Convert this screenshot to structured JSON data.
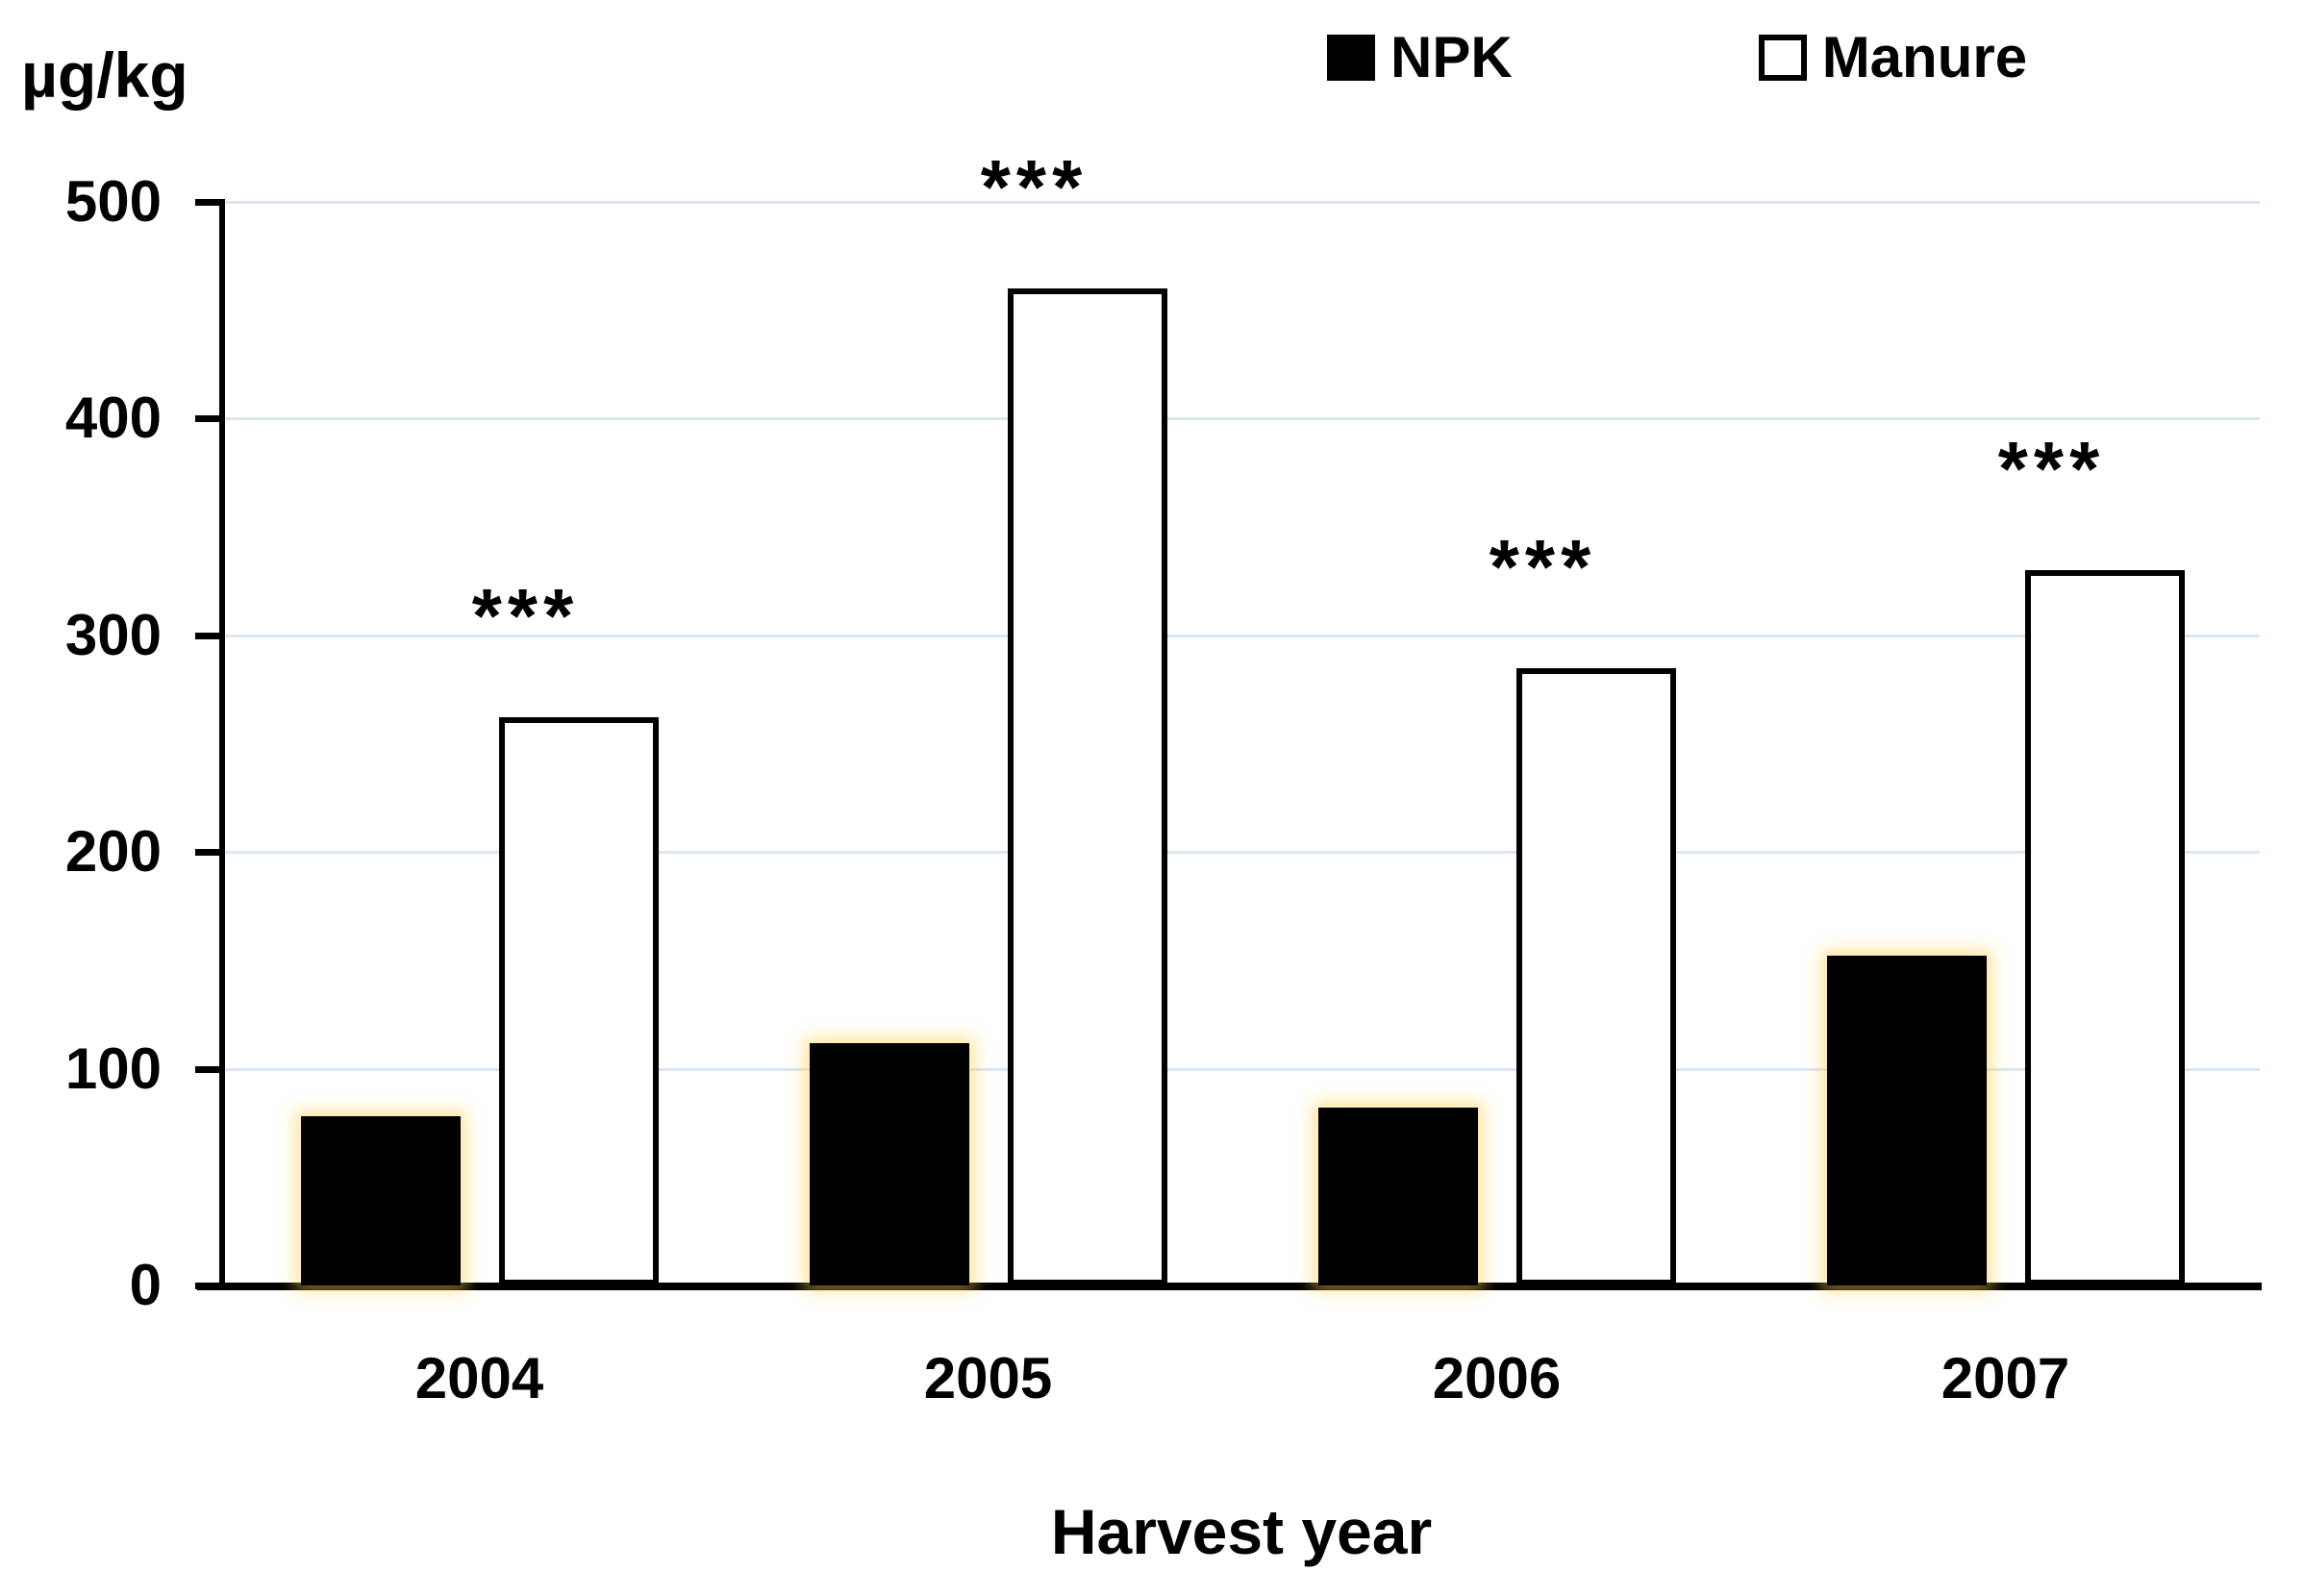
{
  "chart_data": {
    "type": "bar",
    "title": "",
    "ylabel": "µg/kg",
    "xlabel": "Harvest year",
    "categories": [
      "2004",
      "2005",
      "2006",
      "2007"
    ],
    "series": [
      {
        "name": "NPK",
        "values": [
          78,
          112,
          82,
          152
        ],
        "fill": "#000000"
      },
      {
        "name": "Manure",
        "values": [
          262,
          460,
          285,
          330
        ],
        "fill": "#ffffff",
        "border_color": "#000000"
      }
    ],
    "ylim": [
      0,
      500
    ],
    "yticks": [
      "0",
      "100",
      "200",
      "300",
      "400",
      "500"
    ],
    "grid": true,
    "legend_position": "top",
    "annotations": [
      {
        "text": "***",
        "category": "2004",
        "series": "Manure"
      },
      {
        "text": "***",
        "category": "2005",
        "series": "Manure"
      },
      {
        "text": "***",
        "category": "2006",
        "series": "Manure"
      },
      {
        "text": "***",
        "category": "2007",
        "series": "Manure"
      }
    ]
  },
  "colors": {
    "background": "#ffffff",
    "text": "#000000",
    "npk_fill": "#000000",
    "npk_glow": "#ffd24d",
    "manure_fill": "#ffffff",
    "bar_border": "#000000",
    "gridline": "#dce6f1"
  }
}
